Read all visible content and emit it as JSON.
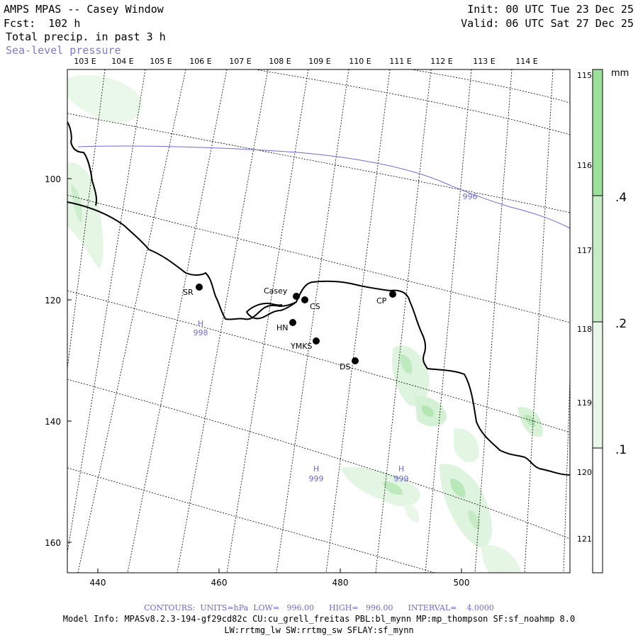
{
  "header": {
    "title": "AMPS MPAS -- Casey Window",
    "forecast": "Fcst:  102 h",
    "field": "Total precip. in past 3 h",
    "overlay": "Sea-level pressure",
    "init": "Init: 00 UTC Tue 23 Dec 25",
    "valid": "Valid: 06 UTC Sat 27 Dec 25"
  },
  "colors": {
    "precip_light": "#e8f7e8",
    "precip_mid": "#c6ecc6",
    "precip_strong": "#9be09b",
    "slp_contour": "#6b6bdb",
    "coast": "#000000"
  },
  "grid": {
    "x_ticks": [
      "440",
      "460",
      "480",
      "500"
    ],
    "y_ticks": [
      "100",
      "120",
      "140",
      "160"
    ],
    "lon_labels": [
      "103 E",
      "104 E",
      "105 E",
      "106 E",
      "107 E",
      "108 E",
      "109 E",
      "110 E",
      "111 E",
      "112 E",
      "113 E",
      "114 E"
    ],
    "lat_labels": [
      "115 E",
      "116 E",
      "117 E",
      "118 E",
      "119 E",
      "120 E",
      "121 E"
    ]
  },
  "stations": [
    {
      "name": "SR"
    },
    {
      "name": "Casey"
    },
    {
      "name": "CS"
    },
    {
      "name": "CP"
    },
    {
      "name": "HN"
    },
    {
      "name": "YMKS"
    },
    {
      "name": "DS"
    }
  ],
  "pressure_labels": [
    {
      "letter": "H",
      "value": "998"
    },
    {
      "letter": "H",
      "value": "999"
    },
    {
      "letter": "H",
      "value": "999"
    }
  ],
  "contour_label": "996",
  "colorbar": {
    "unit": "mm",
    "labels": [
      ".4",
      ".2",
      ".1"
    ]
  },
  "footer": {
    "contours": "CONTOURS:  UNITS=hPa  LOW=   996.00      HIGH=   996.00      INTERVAL=    4.0000",
    "model_info": "Model Info: MPASv8.2.3-194-gf29cd82c CU:cu_grell_freitas PBL:bl_mynn MP:mp_thompson SF:sf_noahmp 8.0",
    "physics": "LW:rrtmg_lw SW:rrtmg_sw SFLAY:sf_mynn"
  }
}
